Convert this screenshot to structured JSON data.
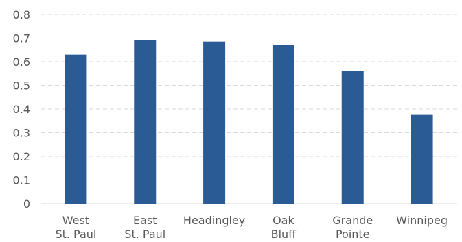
{
  "chart_data": {
    "type": "bar",
    "categories": [
      [
        "West",
        "St. Paul"
      ],
      [
        "East",
        "St. Paul"
      ],
      [
        "Headingley"
      ],
      [
        "Oak",
        "Bluff"
      ],
      [
        "Grande",
        "Pointe"
      ],
      [
        "Winnipeg"
      ]
    ],
    "values": [
      0.63,
      0.69,
      0.685,
      0.67,
      0.56,
      0.375
    ],
    "ylim": [
      0,
      0.8
    ],
    "yticks": [
      "0",
      "0.1",
      "0.2",
      "0.3",
      "0.4",
      "0.5",
      "0.6",
      "0.7",
      "0.8"
    ],
    "title": "",
    "xlabel": "",
    "ylabel": "",
    "grid": true,
    "legend": "none",
    "bar_color": "#2a5b95"
  }
}
